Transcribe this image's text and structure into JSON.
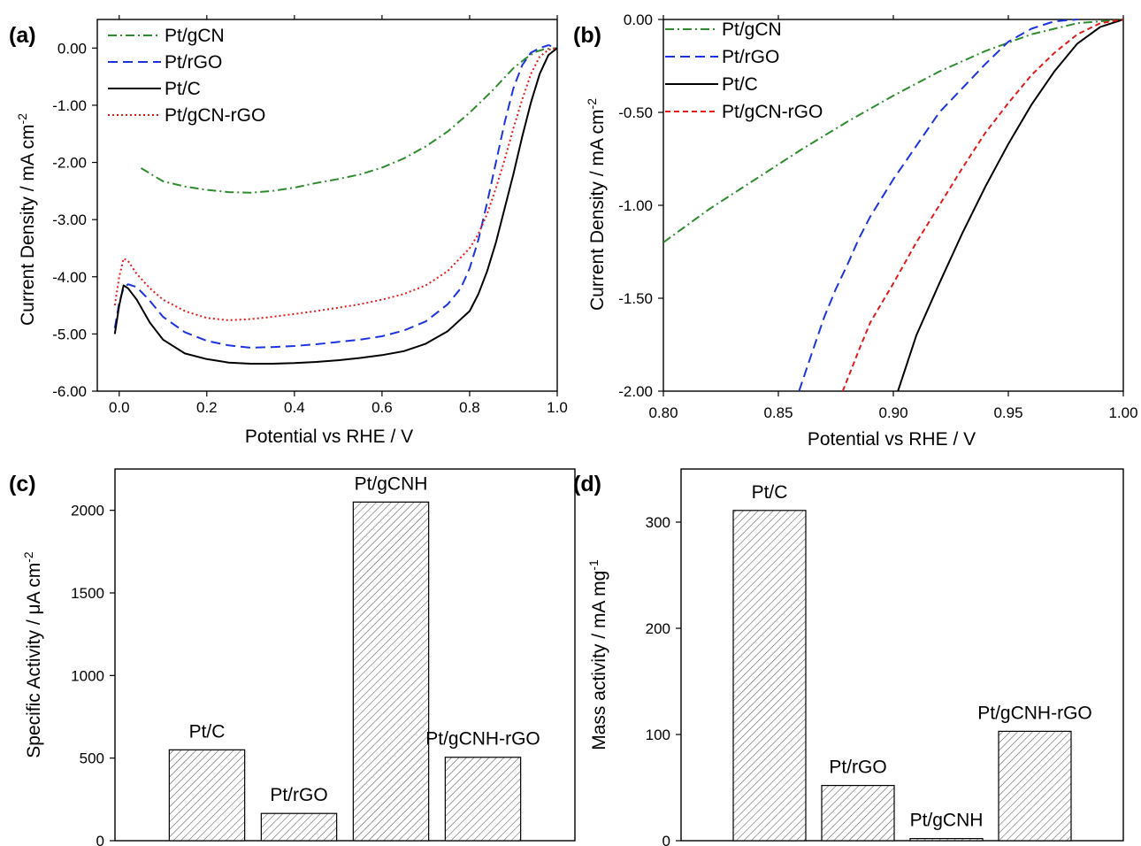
{
  "figure": {
    "panels": [
      "(a)",
      "(b)",
      "(c)",
      "(d)"
    ]
  },
  "chart_data": [
    {
      "panel": "(a)",
      "type": "line",
      "xlabel": "Potential vs RHE / V",
      "ylabel_main": "Current Density / mA cm",
      "ylabel_sup": "-2",
      "xlim": [
        -0.05,
        1.0
      ],
      "ylim": [
        -6.0,
        0.5
      ],
      "xticks": [
        0.0,
        0.2,
        0.4,
        0.6,
        0.8,
        1.0
      ],
      "xtick_labels": [
        "0.0",
        "0.2",
        "0.4",
        "0.6",
        "0.8",
        "1.0"
      ],
      "yticks": [
        0,
        -1,
        -2,
        -3,
        -4,
        -5,
        -6
      ],
      "ytick_labels": [
        "0.00",
        "-1.00",
        "-2.00",
        "-3.00",
        "-4.00",
        "-5.00",
        "-6.00"
      ],
      "legend_position": "top-left",
      "grid": false,
      "series": [
        {
          "name": "Pt/gCN",
          "color": "#2e8b2e",
          "dash": "dashdot",
          "x": [
            0.05,
            0.1,
            0.15,
            0.2,
            0.25,
            0.3,
            0.35,
            0.4,
            0.45,
            0.5,
            0.55,
            0.6,
            0.65,
            0.7,
            0.75,
            0.8,
            0.85,
            0.9,
            0.93,
            0.95,
            0.97,
            1.0
          ],
          "y": [
            -2.1,
            -2.33,
            -2.42,
            -2.48,
            -2.52,
            -2.53,
            -2.5,
            -2.44,
            -2.36,
            -2.29,
            -2.21,
            -2.09,
            -1.93,
            -1.72,
            -1.46,
            -1.13,
            -0.76,
            -0.35,
            -0.17,
            -0.07,
            -0.02,
            0.0
          ]
        },
        {
          "name": "Pt/rGO",
          "color": "#1c34e0",
          "dash": "dashed",
          "x": [
            -0.01,
            0.0,
            0.01,
            0.02,
            0.04,
            0.07,
            0.1,
            0.15,
            0.2,
            0.25,
            0.3,
            0.35,
            0.4,
            0.45,
            0.5,
            0.55,
            0.6,
            0.65,
            0.7,
            0.75,
            0.78,
            0.8,
            0.82,
            0.84,
            0.86,
            0.88,
            0.9,
            0.92,
            0.94,
            0.96,
            0.98,
            1.0
          ],
          "y": [
            -4.9,
            -4.45,
            -4.2,
            -4.13,
            -4.18,
            -4.42,
            -4.7,
            -4.97,
            -5.12,
            -5.2,
            -5.24,
            -5.23,
            -5.21,
            -5.18,
            -5.14,
            -5.1,
            -5.04,
            -4.94,
            -4.78,
            -4.48,
            -4.2,
            -3.85,
            -3.35,
            -2.7,
            -2.0,
            -1.3,
            -0.7,
            -0.3,
            -0.08,
            0.0,
            0.05,
            0.0
          ]
        },
        {
          "name": "Pt/C",
          "color": "#000000",
          "dash": "solid",
          "x": [
            -0.01,
            0.0,
            0.01,
            0.02,
            0.04,
            0.07,
            0.1,
            0.15,
            0.2,
            0.25,
            0.3,
            0.35,
            0.4,
            0.45,
            0.5,
            0.55,
            0.6,
            0.65,
            0.7,
            0.75,
            0.8,
            0.82,
            0.84,
            0.86,
            0.88,
            0.9,
            0.92,
            0.94,
            0.96,
            0.98,
            1.0
          ],
          "y": [
            -5.0,
            -4.5,
            -4.15,
            -4.2,
            -4.4,
            -4.8,
            -5.1,
            -5.34,
            -5.44,
            -5.5,
            -5.52,
            -5.52,
            -5.51,
            -5.49,
            -5.46,
            -5.42,
            -5.37,
            -5.3,
            -5.17,
            -4.95,
            -4.6,
            -4.3,
            -3.9,
            -3.4,
            -2.8,
            -2.2,
            -1.55,
            -0.95,
            -0.45,
            -0.12,
            0.0
          ]
        },
        {
          "name": "Pt/gCN-rGO",
          "color": "#e41a1a",
          "dash": "dotted",
          "x": [
            -0.01,
            0.0,
            0.01,
            0.02,
            0.04,
            0.07,
            0.1,
            0.15,
            0.2,
            0.25,
            0.3,
            0.35,
            0.4,
            0.45,
            0.5,
            0.55,
            0.6,
            0.65,
            0.7,
            0.75,
            0.8,
            0.82,
            0.84,
            0.86,
            0.88,
            0.9,
            0.92,
            0.94,
            0.96,
            0.98,
            1.0
          ],
          "y": [
            -4.5,
            -4.0,
            -3.68,
            -3.72,
            -3.95,
            -4.2,
            -4.4,
            -4.6,
            -4.72,
            -4.76,
            -4.74,
            -4.7,
            -4.65,
            -4.6,
            -4.54,
            -4.48,
            -4.4,
            -4.3,
            -4.15,
            -3.9,
            -3.5,
            -3.25,
            -2.9,
            -2.45,
            -1.95,
            -1.4,
            -0.9,
            -0.45,
            -0.15,
            -0.03,
            0.0
          ]
        }
      ]
    },
    {
      "panel": "(b)",
      "type": "line",
      "xlabel": "Potential vs RHE / V",
      "ylabel_main": "Current Density / mA cm",
      "ylabel_sup": "-2",
      "xlim": [
        0.8,
        1.0
      ],
      "ylim": [
        -2.0,
        0.0
      ],
      "xticks": [
        0.8,
        0.85,
        0.9,
        0.95,
        1.0
      ],
      "xtick_labels": [
        "0.80",
        "0.85",
        "0.90",
        "0.95",
        "1.00"
      ],
      "yticks": [
        0.0,
        -0.5,
        -1.0,
        -1.5,
        -2.0
      ],
      "ytick_labels": [
        "0.00",
        "-0.50",
        "-1.00",
        "-1.50",
        "-2.00"
      ],
      "legend_position": "top-left",
      "grid": false,
      "series": [
        {
          "name": "Pt/gCN",
          "color": "#2e8b2e",
          "dash": "dashdot",
          "x": [
            0.8,
            0.82,
            0.84,
            0.86,
            0.88,
            0.9,
            0.92,
            0.94,
            0.96,
            0.98,
            1.0
          ],
          "y": [
            -1.2,
            -1.02,
            -0.86,
            -0.7,
            -0.55,
            -0.41,
            -0.28,
            -0.17,
            -0.08,
            -0.02,
            0.0
          ]
        },
        {
          "name": "Pt/rGO",
          "color": "#1c34e0",
          "dash": "dashed",
          "x": [
            0.859,
            0.865,
            0.87,
            0.875,
            0.88,
            0.885,
            0.89,
            0.9,
            0.91,
            0.92,
            0.93,
            0.94,
            0.95,
            0.96,
            0.97,
            0.98
          ],
          "y": [
            -2.0,
            -1.78,
            -1.6,
            -1.45,
            -1.32,
            -1.18,
            -1.06,
            -0.86,
            -0.68,
            -0.5,
            -0.37,
            -0.24,
            -0.12,
            -0.05,
            -0.01,
            0.0
          ]
        },
        {
          "name": "Pt/C",
          "color": "#000000",
          "dash": "solid",
          "x": [
            0.902,
            0.91,
            0.92,
            0.93,
            0.94,
            0.95,
            0.96,
            0.97,
            0.98,
            0.99,
            1.0
          ],
          "y": [
            -2.0,
            -1.7,
            -1.42,
            -1.15,
            -0.9,
            -0.67,
            -0.46,
            -0.28,
            -0.13,
            -0.04,
            0.0
          ]
        },
        {
          "name": "Pt/gCN-rGO",
          "color": "#e41a1a",
          "dash": "shortdash",
          "x": [
            0.878,
            0.885,
            0.89,
            0.9,
            0.91,
            0.92,
            0.93,
            0.94,
            0.95,
            0.96,
            0.97,
            0.98,
            0.99,
            1.0
          ],
          "y": [
            -2.0,
            -1.78,
            -1.63,
            -1.42,
            -1.2,
            -1.0,
            -0.8,
            -0.61,
            -0.45,
            -0.3,
            -0.18,
            -0.08,
            -0.02,
            0.0
          ]
        }
      ]
    },
    {
      "panel": "(c)",
      "type": "bar",
      "ylabel_main": "Specific Activity / μA cm",
      "ylabel_sup": "-2",
      "ylim": [
        0,
        2250
      ],
      "yticks": [
        0,
        500,
        1000,
        1500,
        2000
      ],
      "ytick_labels": [
        "0",
        "500",
        "1000",
        "1500",
        "2000"
      ],
      "categories": [
        "Pt/C",
        "Pt/rGO",
        "Pt/gCNH",
        "Pt/gCNH-rGO"
      ],
      "values": [
        550,
        165,
        2050,
        505
      ],
      "pattern": "hatched"
    },
    {
      "panel": "(d)",
      "type": "bar",
      "ylabel_main": "Mass activity / mA mg",
      "ylabel_sup": "-1",
      "ylim": [
        0,
        350
      ],
      "yticks": [
        0,
        100,
        200,
        300
      ],
      "ytick_labels": [
        "0",
        "100",
        "200",
        "300"
      ],
      "categories": [
        "Pt/C",
        "Pt/rGO",
        "Pt/gCNH",
        "Pt/gCNH-rGO"
      ],
      "values": [
        311,
        52,
        2,
        103
      ],
      "pattern": "hatched"
    }
  ]
}
